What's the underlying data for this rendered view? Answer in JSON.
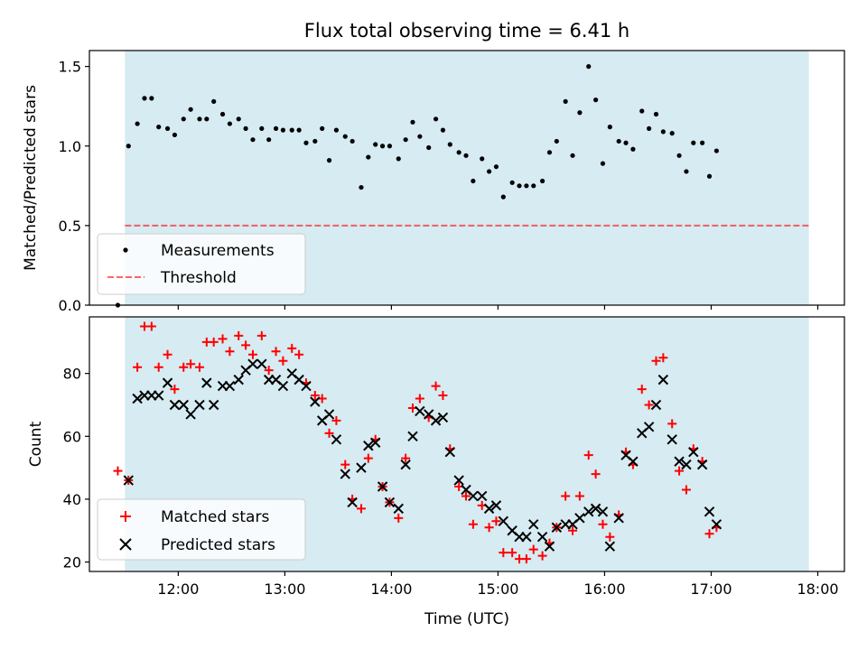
{
  "chart_data": [
    {
      "type": "scatter",
      "title": "Flux total observing time = 6.41 h",
      "xlabel": "",
      "ylabel": "Matched/Predicted stars",
      "x_range": [
        "11:10",
        "18:15"
      ],
      "ylim": [
        0,
        1.6
      ],
      "y_ticks": [
        "0.0",
        "0.5",
        "1.0",
        "1.5"
      ],
      "shaded_interval": [
        "11:30",
        "17:55"
      ],
      "shade_color": "#add8e6",
      "threshold": 0.5,
      "threshold_color": "#ff0000",
      "legend_placement": "lower-left",
      "series": [
        {
          "name": "Measurements",
          "marker": "dot",
          "color": "#000000",
          "points": [
            [
              "11:26",
              0.0
            ],
            [
              "11:32",
              1.0
            ],
            [
              "11:37",
              1.14
            ],
            [
              "11:41",
              1.3
            ],
            [
              "11:45",
              1.3
            ],
            [
              "11:49",
              1.12
            ],
            [
              "11:54",
              1.11
            ],
            [
              "11:58",
              1.07
            ],
            [
              "12:03",
              1.17
            ],
            [
              "12:07",
              1.23
            ],
            [
              "12:12",
              1.17
            ],
            [
              "12:16",
              1.17
            ],
            [
              "12:20",
              1.28
            ],
            [
              "12:25",
              1.2
            ],
            [
              "12:29",
              1.14
            ],
            [
              "12:34",
              1.17
            ],
            [
              "12:38",
              1.11
            ],
            [
              "12:42",
              1.04
            ],
            [
              "12:47",
              1.11
            ],
            [
              "12:51",
              1.04
            ],
            [
              "12:55",
              1.11
            ],
            [
              "12:59",
              1.1
            ],
            [
              "13:04",
              1.1
            ],
            [
              "13:08",
              1.1
            ],
            [
              "13:12",
              1.02
            ],
            [
              "13:17",
              1.03
            ],
            [
              "13:21",
              1.11
            ],
            [
              "13:25",
              0.91
            ],
            [
              "13:29",
              1.1
            ],
            [
              "13:34",
              1.06
            ],
            [
              "13:38",
              1.03
            ],
            [
              "13:43",
              0.74
            ],
            [
              "13:47",
              0.93
            ],
            [
              "13:51",
              1.01
            ],
            [
              "13:55",
              1.0
            ],
            [
              "13:59",
              1.0
            ],
            [
              "14:04",
              0.92
            ],
            [
              "14:08",
              1.04
            ],
            [
              "14:12",
              1.15
            ],
            [
              "14:16",
              1.06
            ],
            [
              "14:21",
              0.99
            ],
            [
              "14:25",
              1.17
            ],
            [
              "14:29",
              1.1
            ],
            [
              "14:33",
              1.01
            ],
            [
              "14:38",
              0.96
            ],
            [
              "14:42",
              0.94
            ],
            [
              "14:46",
              0.78
            ],
            [
              "14:51",
              0.92
            ],
            [
              "14:55",
              0.84
            ],
            [
              "14:59",
              0.87
            ],
            [
              "15:03",
              0.68
            ],
            [
              "15:08",
              0.77
            ],
            [
              "15:12",
              0.75
            ],
            [
              "15:16",
              0.75
            ],
            [
              "15:20",
              0.75
            ],
            [
              "15:25",
              0.78
            ],
            [
              "15:29",
              0.96
            ],
            [
              "15:33",
              1.03
            ],
            [
              "15:38",
              1.28
            ],
            [
              "15:42",
              0.94
            ],
            [
              "15:46",
              1.21
            ],
            [
              "15:51",
              1.5
            ],
            [
              "15:55",
              1.29
            ],
            [
              "15:59",
              0.89
            ],
            [
              "16:03",
              1.12
            ],
            [
              "16:08",
              1.03
            ],
            [
              "16:12",
              1.02
            ],
            [
              "16:16",
              0.98
            ],
            [
              "16:21",
              1.22
            ],
            [
              "16:25",
              1.11
            ],
            [
              "16:29",
              1.2
            ],
            [
              "16:33",
              1.09
            ],
            [
              "16:38",
              1.08
            ],
            [
              "16:42",
              0.94
            ],
            [
              "16:46",
              0.84
            ],
            [
              "16:50",
              1.02
            ],
            [
              "16:55",
              1.02
            ],
            [
              "16:59",
              0.81
            ],
            [
              "17:03",
              0.97
            ]
          ]
        },
        {
          "name": "Threshold",
          "marker": "dashed-line",
          "color": "#ff0000",
          "points": [
            [
              "11:30",
              0.5
            ],
            [
              "17:55",
              0.5
            ]
          ]
        }
      ],
      "legend": [
        "Measurements",
        "Threshold"
      ]
    },
    {
      "type": "scatter",
      "title": "",
      "xlabel": "Time (UTC)",
      "ylabel": "Count",
      "x_range": [
        "11:10",
        "18:15"
      ],
      "x_ticks": [
        "12:00",
        "13:00",
        "14:00",
        "15:00",
        "16:00",
        "17:00",
        "18:00"
      ],
      "ylim": [
        17,
        98
      ],
      "y_ticks": [
        "20",
        "40",
        "60",
        "80"
      ],
      "shaded_interval": [
        "11:30",
        "17:55"
      ],
      "shade_color": "#add8e6",
      "legend_placement": "lower-left",
      "series": [
        {
          "name": "Matched stars",
          "marker": "plus",
          "color": "#ff0000",
          "points": [
            [
              "11:26",
              49
            ],
            [
              "11:32",
              46
            ],
            [
              "11:37",
              82
            ],
            [
              "11:41",
              95
            ],
            [
              "11:45",
              95
            ],
            [
              "11:49",
              82
            ],
            [
              "11:54",
              86
            ],
            [
              "11:58",
              75
            ],
            [
              "12:03",
              82
            ],
            [
              "12:07",
              83
            ],
            [
              "12:12",
              82
            ],
            [
              "12:16",
              90
            ],
            [
              "12:20",
              90
            ],
            [
              "12:25",
              91
            ],
            [
              "12:29",
              87
            ],
            [
              "12:34",
              92
            ],
            [
              "12:38",
              89
            ],
            [
              "12:42",
              86
            ],
            [
              "12:47",
              92
            ],
            [
              "12:51",
              81
            ],
            [
              "12:55",
              87
            ],
            [
              "12:59",
              84
            ],
            [
              "13:04",
              88
            ],
            [
              "13:08",
              86
            ],
            [
              "13:12",
              77
            ],
            [
              "13:17",
              73
            ],
            [
              "13:21",
              72
            ],
            [
              "13:25",
              61
            ],
            [
              "13:29",
              65
            ],
            [
              "13:34",
              51
            ],
            [
              "13:38",
              40
            ],
            [
              "13:43",
              37
            ],
            [
              "13:47",
              53
            ],
            [
              "13:51",
              59
            ],
            [
              "13:55",
              44
            ],
            [
              "13:59",
              39
            ],
            [
              "14:04",
              34
            ],
            [
              "14:08",
              53
            ],
            [
              "14:12",
              69
            ],
            [
              "14:16",
              72
            ],
            [
              "14:21",
              66
            ],
            [
              "14:25",
              76
            ],
            [
              "14:29",
              73
            ],
            [
              "14:33",
              56
            ],
            [
              "14:38",
              44
            ],
            [
              "14:42",
              41
            ],
            [
              "14:46",
              32
            ],
            [
              "14:51",
              38
            ],
            [
              "14:55",
              31
            ],
            [
              "14:59",
              33
            ],
            [
              "15:03",
              23
            ],
            [
              "15:08",
              23
            ],
            [
              "15:12",
              21
            ],
            [
              "15:16",
              21
            ],
            [
              "15:20",
              24
            ],
            [
              "15:25",
              22
            ],
            [
              "15:29",
              26
            ],
            [
              "15:33",
              31
            ],
            [
              "15:38",
              41
            ],
            [
              "15:42",
              30
            ],
            [
              "15:46",
              41
            ],
            [
              "15:51",
              54
            ],
            [
              "15:55",
              48
            ],
            [
              "15:59",
              32
            ],
            [
              "16:03",
              28
            ],
            [
              "16:08",
              35
            ],
            [
              "16:12",
              55
            ],
            [
              "16:16",
              51
            ],
            [
              "16:21",
              75
            ],
            [
              "16:25",
              70
            ],
            [
              "16:29",
              84
            ],
            [
              "16:33",
              85
            ],
            [
              "16:38",
              64
            ],
            [
              "16:42",
              49
            ],
            [
              "16:46",
              43
            ],
            [
              "16:50",
              56
            ],
            [
              "16:55",
              52
            ],
            [
              "16:59",
              29
            ],
            [
              "17:03",
              31
            ]
          ]
        },
        {
          "name": "Predicted stars",
          "marker": "x",
          "color": "#000000",
          "points": [
            [
              "11:32",
              46
            ],
            [
              "11:37",
              72
            ],
            [
              "11:41",
              73
            ],
            [
              "11:45",
              73
            ],
            [
              "11:49",
              73
            ],
            [
              "11:54",
              77
            ],
            [
              "11:58",
              70
            ],
            [
              "12:03",
              70
            ],
            [
              "12:07",
              67
            ],
            [
              "12:12",
              70
            ],
            [
              "12:16",
              77
            ],
            [
              "12:20",
              70
            ],
            [
              "12:25",
              76
            ],
            [
              "12:29",
              76
            ],
            [
              "12:34",
              78
            ],
            [
              "12:38",
              81
            ],
            [
              "12:42",
              83
            ],
            [
              "12:47",
              83
            ],
            [
              "12:51",
              78
            ],
            [
              "12:55",
              78
            ],
            [
              "12:59",
              76
            ],
            [
              "13:04",
              80
            ],
            [
              "13:08",
              78
            ],
            [
              "13:12",
              76
            ],
            [
              "13:17",
              71
            ],
            [
              "13:21",
              65
            ],
            [
              "13:25",
              67
            ],
            [
              "13:29",
              59
            ],
            [
              "13:34",
              48
            ],
            [
              "13:38",
              39
            ],
            [
              "13:43",
              50
            ],
            [
              "13:47",
              57
            ],
            [
              "13:51",
              58
            ],
            [
              "13:55",
              44
            ],
            [
              "13:59",
              39
            ],
            [
              "14:04",
              37
            ],
            [
              "14:08",
              51
            ],
            [
              "14:12",
              60
            ],
            [
              "14:16",
              68
            ],
            [
              "14:21",
              67
            ],
            [
              "14:25",
              65
            ],
            [
              "14:29",
              66
            ],
            [
              "14:33",
              55
            ],
            [
              "14:38",
              46
            ],
            [
              "14:42",
              43
            ],
            [
              "14:46",
              41
            ],
            [
              "14:51",
              41
            ],
            [
              "14:55",
              37
            ],
            [
              "14:59",
              38
            ],
            [
              "15:03",
              33
            ],
            [
              "15:08",
              30
            ],
            [
              "15:12",
              28
            ],
            [
              "15:16",
              28
            ],
            [
              "15:20",
              32
            ],
            [
              "15:25",
              28
            ],
            [
              "15:29",
              25
            ],
            [
              "15:33",
              31
            ],
            [
              "15:38",
              32
            ],
            [
              "15:42",
              32
            ],
            [
              "15:46",
              34
            ],
            [
              "15:51",
              36
            ],
            [
              "15:55",
              37
            ],
            [
              "15:59",
              36
            ],
            [
              "16:03",
              25
            ],
            [
              "16:08",
              34
            ],
            [
              "16:12",
              54
            ],
            [
              "16:16",
              52
            ],
            [
              "16:21",
              61
            ],
            [
              "16:25",
              63
            ],
            [
              "16:29",
              70
            ],
            [
              "16:33",
              78
            ],
            [
              "16:38",
              59
            ],
            [
              "16:42",
              52
            ],
            [
              "16:46",
              51
            ],
            [
              "16:50",
              55
            ],
            [
              "16:55",
              51
            ],
            [
              "16:59",
              36
            ],
            [
              "17:03",
              32
            ]
          ]
        }
      ],
      "legend": [
        "Matched stars",
        "Predicted stars"
      ]
    }
  ]
}
